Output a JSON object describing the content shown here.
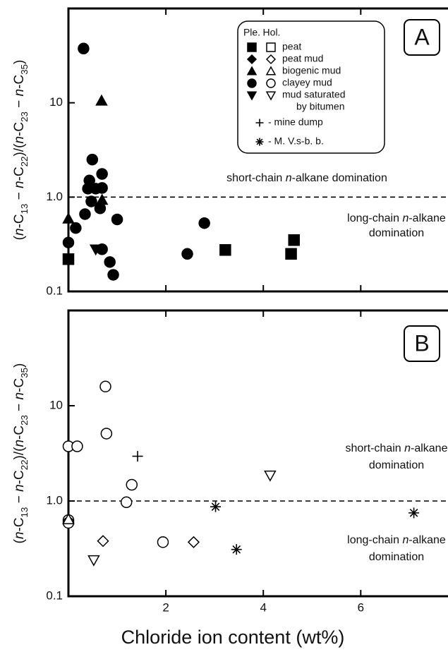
{
  "chart_data": [
    {
      "type": "scatter",
      "panel_label": "A",
      "ylabel": "(n-C13 − n-C22)/(n-C23 − n-C35)",
      "xlim": [
        0,
        7.82
      ],
      "xticks": [
        2,
        4,
        6
      ],
      "ylim": [
        0.1,
        100
      ],
      "log_y": true,
      "yticks": [
        0.1,
        {
          "value": 1,
          "label": "1.0"
        },
        10
      ],
      "reference_line": 1,
      "annotations": [
        [
          "short-chain n-alkane domination"
        ],
        [
          "long-chain n-alkane",
          "domination"
        ]
      ],
      "legend": {
        "headers": [
          "Ple.",
          "Hol."
        ],
        "entries": [
          {
            "label": [
              "peat"
            ],
            "marker": "square",
            "pair": true
          },
          {
            "label": [
              "peat mud"
            ],
            "marker": "diamond",
            "pair": true
          },
          {
            "label": [
              "biogenic mud"
            ],
            "marker": "triangle",
            "pair": true
          },
          {
            "label": [
              "clayey mud"
            ],
            "marker": "circle",
            "pair": true
          },
          {
            "label": [
              "mud saturated",
              "by bitumen"
            ],
            "marker": "triangle-down",
            "pair": true
          },
          {
            "label": [
              "- mine dump"
            ],
            "marker": "plus",
            "pair": false
          },
          {
            "label": [
              "- M. V.s-b. b."
            ],
            "marker": "asterisk",
            "pair": false
          }
        ]
      },
      "series": [
        {
          "marker": "square",
          "filled": true,
          "color": "#000000",
          "x": [
            0,
            3.22,
            4.57,
            4.63
          ],
          "y": [
            0.22,
            0.275,
            0.25,
            0.35
          ]
        },
        {
          "marker": "triangle",
          "filled": true,
          "color": "#000000",
          "x": [
            0.68,
            0,
            0.69
          ],
          "y": [
            10.5,
            0.59,
            0.93
          ]
        },
        {
          "marker": "triangle-down",
          "filled": true,
          "color": "#000000",
          "x": [
            0.56
          ],
          "y": [
            0.28
          ]
        },
        {
          "marker": "circle",
          "filled": true,
          "color": "#000000",
          "x": [
            0.31,
            0.49,
            0.43,
            0.4,
            0.56,
            0.47,
            0.69,
            0.69,
            0.65,
            0.34,
            0.15,
            0,
            0.69,
            1.0,
            0.85,
            0.92,
            2.44,
            2.79
          ],
          "y": [
            37.6,
            2.5,
            1.5,
            1.23,
            1.23,
            0.9,
            1.76,
            1.25,
            0.76,
            0.66,
            0.47,
            0.33,
            0.28,
            0.58,
            0.205,
            0.15,
            0.25,
            0.53
          ]
        }
      ]
    },
    {
      "type": "scatter",
      "panel_label": "B",
      "ylabel": "(n-C13 − n-C22)/(n-C23 − n-C35)",
      "xlabel": "Chloride ion content (wt%)",
      "xlim": [
        0,
        7.82
      ],
      "xticks": [
        2,
        4,
        6
      ],
      "ylim": [
        0.1,
        100
      ],
      "log_y": true,
      "yticks": [
        0.1,
        {
          "value": 1,
          "label": "1.0"
        },
        10
      ],
      "reference_line": 1,
      "annotations": [
        [
          "short-chain n-alkane",
          "domination"
        ],
        [
          "long-chain n-alkane",
          "domination"
        ]
      ],
      "series": [
        {
          "marker": "circle",
          "filled": false,
          "color": "#000000",
          "x": [
            0,
            0.18,
            0,
            0,
            0.76,
            0.78,
            1.3,
            1.19,
            1.94
          ],
          "y": [
            3.75,
            3.75,
            0.63,
            0.59,
            15.9,
            5.1,
            1.48,
            0.97,
            0.37
          ]
        },
        {
          "marker": "diamond",
          "filled": false,
          "color": "#000000",
          "x": [
            0.71,
            2.57
          ],
          "y": [
            0.38,
            0.37
          ]
        },
        {
          "marker": "triangle",
          "filled": false,
          "color": "#000000",
          "x": [
            0
          ],
          "y": [
            0.64
          ]
        },
        {
          "marker": "triangle-down",
          "filled": false,
          "color": "#000000",
          "x": [
            0.52,
            4.14
          ],
          "y": [
            0.24,
            1.86
          ]
        },
        {
          "marker": "plus",
          "filled": false,
          "color": "#000000",
          "x": [
            1.42
          ],
          "y": [
            2.95
          ]
        },
        {
          "marker": "asterisk",
          "filled": false,
          "color": "#000000",
          "x": [
            3.02,
            3.45,
            7.09
          ],
          "y": [
            0.87,
            0.31,
            0.75
          ]
        }
      ]
    }
  ]
}
